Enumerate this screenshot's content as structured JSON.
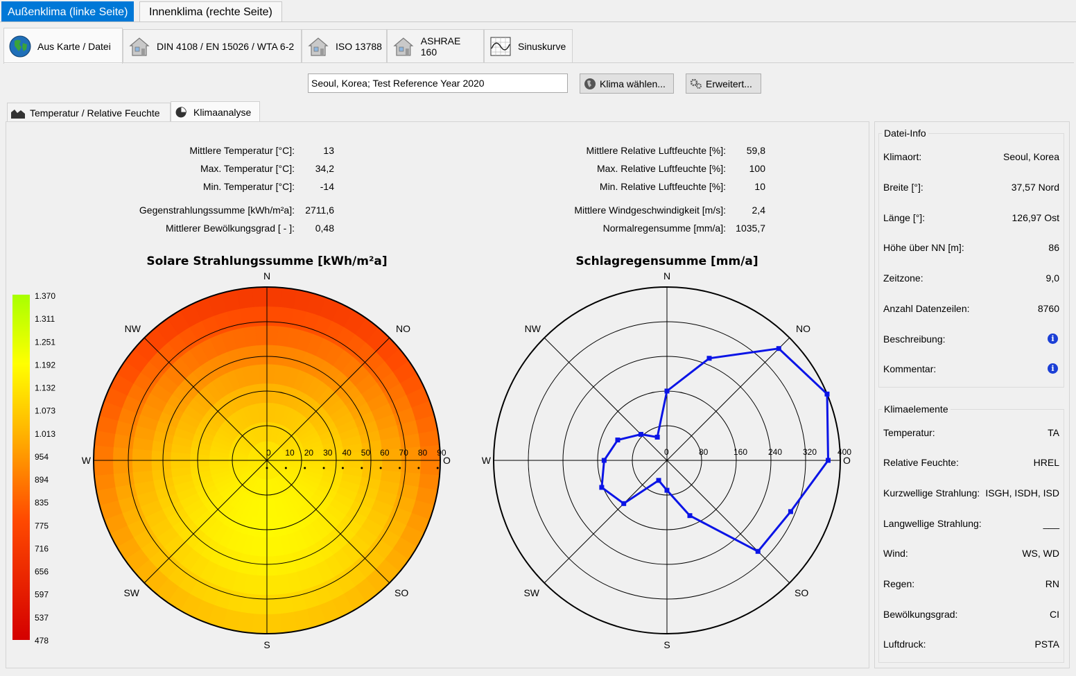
{
  "top_tabs": [
    "Außenklima (linke Seite)",
    "Innenklima (rechte Seite)"
  ],
  "source_tabs": [
    {
      "label": "Aus Karte / Datei",
      "icon": "globe-icon"
    },
    {
      "label": "DIN 4108 / EN 15026 / WTA 6-2",
      "icon": "house-icon"
    },
    {
      "label": "ISO 13788",
      "icon": "house-icon"
    },
    {
      "label": "ASHRAE 160",
      "icon": "house-icon"
    },
    {
      "label": "Sinuskurve",
      "icon": "sine-chart-icon"
    }
  ],
  "file": {
    "value": "Seoul, Korea; Test Reference Year 2020"
  },
  "buttons": {
    "choose_climate": "Klima wählen...",
    "advanced": "Erweitert..."
  },
  "sub_tabs": [
    "Temperatur / Relative Feuchte",
    "Klimaanalyse"
  ],
  "stats_left": [
    {
      "label": "Mittlere Temperatur [°C]:",
      "value": "13"
    },
    {
      "label": "Max. Temperatur [°C]:",
      "value": "34,2"
    },
    {
      "label": "Min. Temperatur [°C]:",
      "value": "-14"
    },
    {
      "label": "Gegenstrahlungssumme [kWh/m²a]:",
      "value": "2711,6"
    },
    {
      "label": "Mittlerer Bewölkungsgrad [ - ]:",
      "value": "0,48"
    }
  ],
  "stats_right": [
    {
      "label": "Mittlere Relative Luftfeuchte [%]:",
      "value": "59,8"
    },
    {
      "label": "Max. Relative Luftfeuchte [%]:",
      "value": "100"
    },
    {
      "label": "Min. Relative Luftfeuchte [%]:",
      "value": "10"
    },
    {
      "label": "Mittlere Windgeschwindigkeit [m/s]:",
      "value": "2,4"
    },
    {
      "label": "Normalregensumme [mm/a]:",
      "value": "1035,7"
    }
  ],
  "chart_data": [
    {
      "type": "heatmap",
      "title": "Solare Strahlungssumme [kWh/m²a]",
      "directions": [
        "N",
        "NO",
        "O",
        "SO",
        "S",
        "SW",
        "W",
        "NW"
      ],
      "radial_ticks": [
        "0",
        "10",
        "20",
        "30",
        "40",
        "50",
        "60",
        "70",
        "80",
        "90"
      ],
      "rlim": [
        0,
        90
      ],
      "colorbar_ticks": [
        "1.370",
        "1.311",
        "1.251",
        "1.192",
        "1.132",
        "1.073",
        "1.013",
        "954",
        "894",
        "835",
        "775",
        "716",
        "656",
        "597",
        "537",
        "478"
      ],
      "colorbar_range": [
        478,
        1370
      ],
      "colors": {
        "low": "#d40000",
        "high": "#a8ff00"
      }
    },
    {
      "type": "line",
      "title": "Schlagregensumme [mm/a]",
      "directions": [
        "N",
        "NO",
        "O",
        "SO",
        "S",
        "SW",
        "W",
        "NW"
      ],
      "radial_ticks": [
        "0",
        "80",
        "160",
        "240",
        "320",
        "400"
      ],
      "rlim": [
        0,
        400
      ],
      "series_color": "#0a14e6",
      "points": [
        {
          "angle": 0,
          "value": 160
        },
        {
          "angle": 22.5,
          "value": 255
        },
        {
          "angle": 45,
          "value": 365
        },
        {
          "angle": 67.5,
          "value": 400
        },
        {
          "angle": 90,
          "value": 372
        },
        {
          "angle": 112.5,
          "value": 309
        },
        {
          "angle": 135,
          "value": 297
        },
        {
          "angle": 157.5,
          "value": 138
        },
        {
          "angle": 180,
          "value": 69
        },
        {
          "angle": 202.5,
          "value": 50
        },
        {
          "angle": 225,
          "value": 141
        },
        {
          "angle": 247.5,
          "value": 163
        },
        {
          "angle": 270,
          "value": 145
        },
        {
          "angle": 292.5,
          "value": 123
        },
        {
          "angle": 315,
          "value": 85
        },
        {
          "angle": 337.5,
          "value": 58
        }
      ]
    }
  ],
  "file_info": {
    "title": "Datei-Info",
    "rows": [
      {
        "label": "Klimaort:",
        "value": "Seoul, Korea"
      },
      {
        "label": "Breite [°]:",
        "value": "37,57 Nord"
      },
      {
        "label": "Länge [°]:",
        "value": "126,97 Ost"
      },
      {
        "label": "Höhe über NN [m]:",
        "value": "86"
      },
      {
        "label": "Zeitzone:",
        "value": "9,0"
      },
      {
        "label": "Anzahl Datenzeilen:",
        "value": "8760"
      },
      {
        "label": "Beschreibung:",
        "value": ""
      },
      {
        "label": "Kommentar:",
        "value": ""
      }
    ]
  },
  "climate_elements": {
    "title": "Klimaelemente",
    "rows": [
      {
        "label": "Temperatur:",
        "value": "TA"
      },
      {
        "label": "Relative Feuchte:",
        "value": "HREL"
      },
      {
        "label": "Kurzwellige Strahlung:",
        "value": "ISGH, ISDH, ISD"
      },
      {
        "label": "Langwellige Strahlung:",
        "value": "___"
      },
      {
        "label": "Wind:",
        "value": "WS, WD"
      },
      {
        "label": "Regen:",
        "value": "RN"
      },
      {
        "label": "Bewölkungsgrad:",
        "value": "CI"
      },
      {
        "label": "Luftdruck:",
        "value": "PSTA"
      }
    ]
  }
}
